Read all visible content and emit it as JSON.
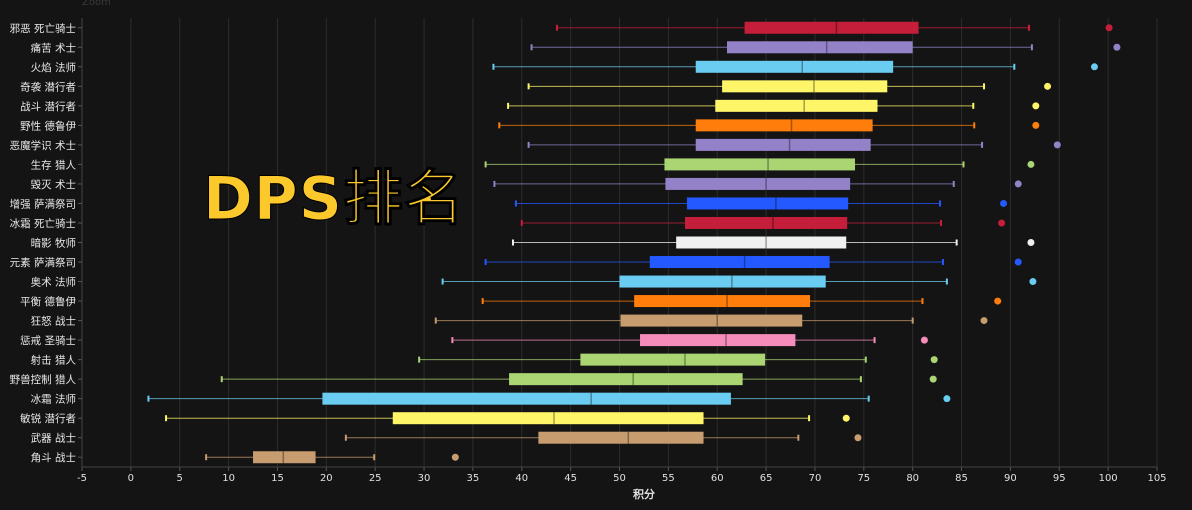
{
  "zoom_label": "Zoom",
  "overlay_title": "DPS排名",
  "chart_data": {
    "type": "boxplot",
    "orientation": "horizontal",
    "xlabel": "积分",
    "xlim": [
      -5,
      105
    ],
    "xticks": [
      -5,
      0,
      5,
      10,
      15,
      20,
      25,
      30,
      35,
      40,
      45,
      50,
      55,
      60,
      65,
      70,
      75,
      80,
      85,
      90,
      95,
      100,
      105
    ],
    "grid": true,
    "series": [
      {
        "label": "邪恶 死亡骑士",
        "color": "#c41e3a",
        "min": 43.6,
        "q1": 62.8,
        "median": 72.2,
        "q3": 80.6,
        "max": 91.9,
        "outlier": 100.1
      },
      {
        "label": "痛苦 术士",
        "color": "#9482c9",
        "min": 41.0,
        "q1": 61.0,
        "median": 71.2,
        "q3": 80.0,
        "max": 92.2,
        "outlier": 100.9
      },
      {
        "label": "火焰 法师",
        "color": "#69ccf0",
        "min": 37.1,
        "q1": 57.8,
        "median": 68.7,
        "q3": 78.0,
        "max": 90.4,
        "outlier": 98.6
      },
      {
        "label": "奇袭 潜行者",
        "color": "#fff569",
        "min": 40.7,
        "q1": 60.5,
        "median": 69.9,
        "q3": 77.4,
        "max": 87.3,
        "outlier": 93.8
      },
      {
        "label": "战斗 潜行者",
        "color": "#fff569",
        "min": 38.6,
        "q1": 59.8,
        "median": 68.9,
        "q3": 76.4,
        "max": 86.2,
        "outlier": 92.6
      },
      {
        "label": "野性 德鲁伊",
        "color": "#ff7d0a",
        "min": 37.7,
        "q1": 57.8,
        "median": 67.6,
        "q3": 75.9,
        "max": 86.3,
        "outlier": 92.6
      },
      {
        "label": "恶魔学识 术士",
        "color": "#9482c9",
        "min": 40.7,
        "q1": 57.8,
        "median": 67.4,
        "q3": 75.7,
        "max": 87.1,
        "outlier": 94.8
      },
      {
        "label": "生存 猎人",
        "color": "#abd473",
        "min": 36.3,
        "q1": 54.6,
        "median": 65.2,
        "q3": 74.1,
        "max": 85.2,
        "outlier": 92.1
      },
      {
        "label": "毁灭 术士",
        "color": "#9482c9",
        "min": 37.2,
        "q1": 54.7,
        "median": 65.0,
        "q3": 73.6,
        "max": 84.2,
        "outlier": 90.8
      },
      {
        "label": "增强 萨满祭司",
        "color": "#2459ff",
        "min": 39.4,
        "q1": 56.9,
        "median": 66.0,
        "q3": 73.4,
        "max": 82.8,
        "outlier": 89.3
      },
      {
        "label": "冰霜 死亡骑士",
        "color": "#c41e3a",
        "min": 40.0,
        "q1": 56.7,
        "median": 65.7,
        "q3": 73.3,
        "max": 82.9,
        "outlier": 89.1
      },
      {
        "label": "暗影 牧师",
        "color": "#f0f0f0",
        "min": 39.1,
        "q1": 55.8,
        "median": 65.0,
        "q3": 73.2,
        "max": 84.5,
        "outlier": 92.1
      },
      {
        "label": "元素 萨满祭司",
        "color": "#2459ff",
        "min": 36.3,
        "q1": 53.1,
        "median": 62.8,
        "q3": 71.5,
        "max": 83.1,
        "outlier": 90.8
      },
      {
        "label": "奥术 法师",
        "color": "#69ccf0",
        "min": 31.9,
        "q1": 50.0,
        "median": 61.5,
        "q3": 71.1,
        "max": 83.5,
        "outlier": 92.3
      },
      {
        "label": "平衡 德鲁伊",
        "color": "#ff7d0a",
        "min": 36.0,
        "q1": 51.5,
        "median": 61.0,
        "q3": 69.5,
        "max": 81.0,
        "outlier": 88.7
      },
      {
        "label": "狂怒 战士",
        "color": "#c79c6e",
        "min": 31.2,
        "q1": 50.1,
        "median": 60.0,
        "q3": 68.7,
        "max": 80.0,
        "outlier": 87.3
      },
      {
        "label": "惩戒 圣骑士",
        "color": "#f58cba",
        "min": 32.9,
        "q1": 52.1,
        "median": 60.9,
        "q3": 68.0,
        "max": 76.1,
        "outlier": 81.2
      },
      {
        "label": "射击 猎人",
        "color": "#abd473",
        "min": 29.5,
        "q1": 46.0,
        "median": 56.7,
        "q3": 64.9,
        "max": 75.2,
        "outlier": 82.2
      },
      {
        "label": "野兽控制 猎人",
        "color": "#abd473",
        "min": 9.3,
        "q1": 38.7,
        "median": 51.4,
        "q3": 62.6,
        "max": 74.7,
        "outlier": 82.1
      },
      {
        "label": "冰霜 法师",
        "color": "#69ccf0",
        "min": 1.8,
        "q1": 19.6,
        "median": 47.1,
        "q3": 61.4,
        "max": 75.5,
        "outlier": 83.5
      },
      {
        "label": "敏锐 潜行者",
        "color": "#fff569",
        "min": 3.6,
        "q1": 26.8,
        "median": 43.3,
        "q3": 58.6,
        "max": 69.4,
        "outlier": 73.2
      },
      {
        "label": "武器 战士",
        "color": "#c79c6e",
        "min": 22.0,
        "q1": 41.7,
        "median": 50.9,
        "q3": 58.6,
        "max": 68.3,
        "outlier": 74.4
      },
      {
        "label": "角斗 战士",
        "color": "#c79c6e",
        "min": 7.7,
        "q1": 12.5,
        "median": 15.6,
        "q3": 18.9,
        "max": 24.9,
        "outlier": 33.2
      }
    ]
  }
}
